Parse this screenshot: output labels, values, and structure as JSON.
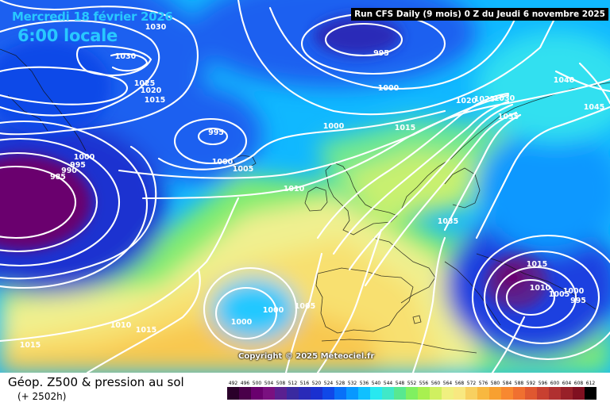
{
  "header": {
    "date": "Mercredi 18 février 2026",
    "time": "6:00 locale",
    "run_info": "Run CFS Daily (9 mois) 0 Z du Jeudi 6 novembre 2025"
  },
  "copyright": "Copyright © 2025 Meteociel.fr",
  "legend": {
    "title": "Géop. Z500 & pression au sol",
    "subtitle": "(+ 2502h)",
    "scale_values": [
      "492",
      "496",
      "500",
      "504",
      "508",
      "512",
      "516",
      "520",
      "524",
      "528",
      "532",
      "536",
      "540",
      "544",
      "548",
      "552",
      "556",
      "560",
      "564",
      "568",
      "572",
      "576",
      "580",
      "584",
      "588",
      "592",
      "596",
      "600",
      "604",
      "608",
      "612"
    ],
    "scale_colors": [
      "#2a002a",
      "#4a004a",
      "#6a006e",
      "#7a1080",
      "#5a2090",
      "#3a2aa0",
      "#2a2ab8",
      "#1a30d0",
      "#1048e8",
      "#0870f8",
      "#0898ff",
      "#10c0ff",
      "#28e8f0",
      "#40e8c8",
      "#58e890",
      "#80f060",
      "#a8f050",
      "#d0f060",
      "#f0f080",
      "#f8e880",
      "#f8d060",
      "#f8b840",
      "#f8a030",
      "#f88830",
      "#f07030",
      "#e05830",
      "#c84030",
      "#b03030",
      "#982028",
      "#801020",
      "#000000"
    ]
  },
  "isobar_labels": [
    {
      "text": "1030"
    },
    {
      "text": "1030"
    },
    {
      "text": "1025"
    },
    {
      "text": "1020"
    },
    {
      "text": "1015"
    },
    {
      "text": "995"
    },
    {
      "text": "1000"
    },
    {
      "text": "995"
    },
    {
      "text": "1000"
    },
    {
      "text": "1005"
    },
    {
      "text": "1000"
    },
    {
      "text": "995"
    },
    {
      "text": "990"
    },
    {
      "text": "985"
    },
    {
      "text": "1000"
    },
    {
      "text": "1010"
    },
    {
      "text": "1015"
    },
    {
      "text": "1020"
    },
    {
      "text": "1025"
    },
    {
      "text": "1030"
    },
    {
      "text": "1035"
    },
    {
      "text": "1040"
    },
    {
      "text": "1045"
    },
    {
      "text": "1035"
    },
    {
      "text": "1015"
    },
    {
      "text": "1010"
    },
    {
      "text": "1005"
    },
    {
      "text": "1000"
    },
    {
      "text": "995"
    },
    {
      "text": "1000"
    },
    {
      "text": "1000"
    },
    {
      "text": "1005"
    },
    {
      "text": "1010"
    },
    {
      "text": "1015"
    },
    {
      "text": "1015"
    }
  ]
}
